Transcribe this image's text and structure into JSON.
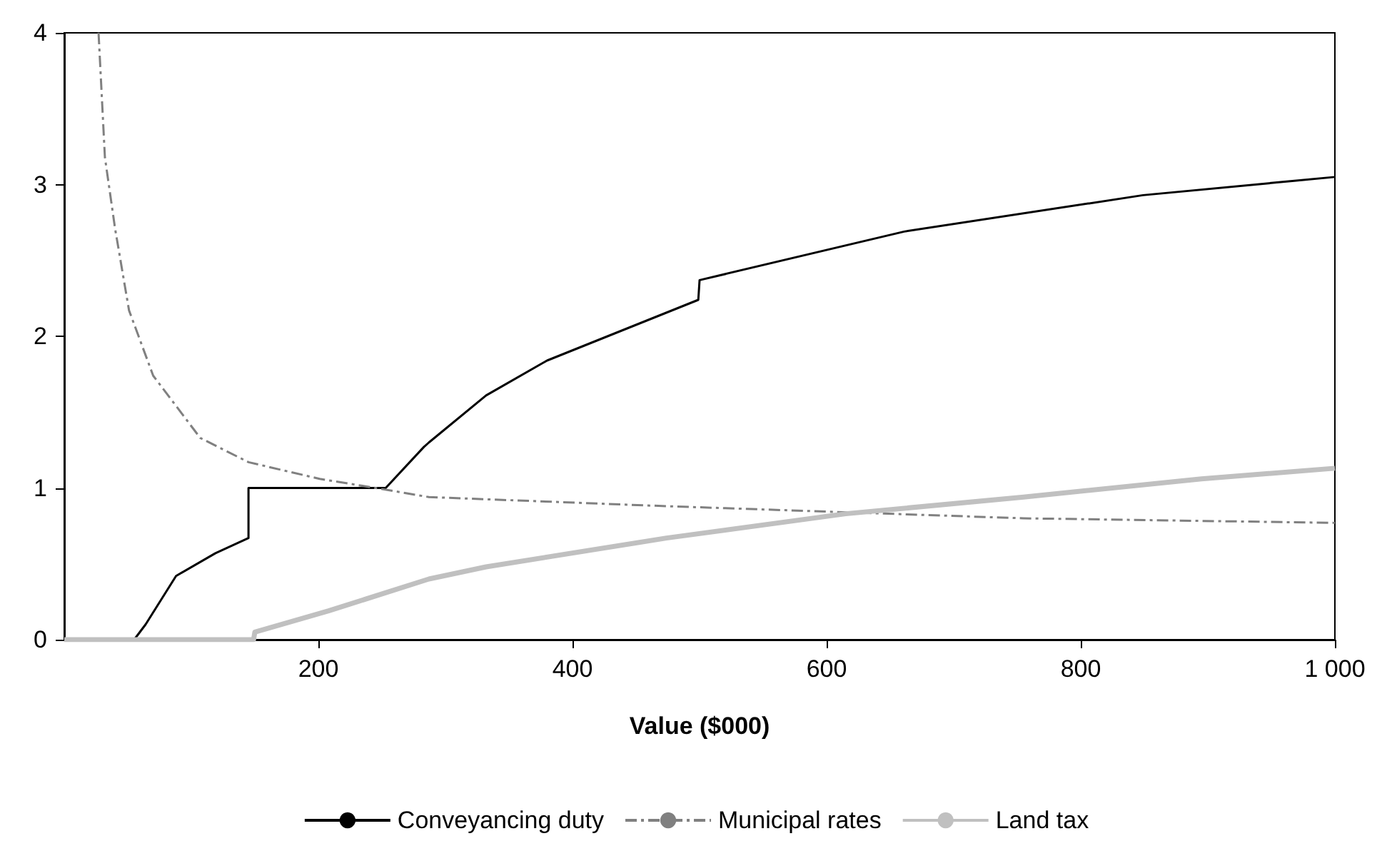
{
  "chart_data": {
    "type": "line",
    "xlabel": "Value ($000)",
    "xlim": [
      0,
      1000
    ],
    "xticks": [
      200,
      400,
      600,
      800,
      {
        "value": 1000,
        "label": "1 000"
      }
    ],
    "ylim": [
      0,
      4
    ],
    "yticks": [
      0,
      1,
      2,
      3,
      4
    ],
    "grid": false,
    "legend": "bottom",
    "marker": "none",
    "series": [
      {
        "name": "Conveyancing duty",
        "color": "#000000",
        "line_style": "solid",
        "x": [
          0,
          55,
          64,
          88,
          119,
          145,
          145,
          253,
          283,
          287,
          332,
          380,
          499,
          500,
          661,
          849,
          1000
        ],
        "values": [
          0,
          0,
          0.1,
          0.42,
          0.57,
          0.67,
          1.0,
          1.0,
          1.27,
          1.3,
          1.61,
          1.84,
          2.24,
          2.37,
          2.69,
          2.93,
          3.05
        ]
      },
      {
        "name": "Municipal rates",
        "color": "#808080",
        "line_style": "dashed",
        "x": [
          27,
          32,
          40,
          51,
          70,
          107,
          145,
          201,
          245,
          287,
          474,
          755,
          1000
        ],
        "values": [
          4.0,
          3.18,
          2.71,
          2.17,
          1.74,
          1.33,
          1.17,
          1.06,
          1.0,
          0.94,
          0.88,
          0.8,
          0.77
        ]
      },
      {
        "name": "Land tax",
        "color": "#c0c0c0",
        "line_style": "solid",
        "x": [
          0,
          149,
          150,
          208,
          287,
          332,
          474,
          615,
          755,
          895,
          1000
        ],
        "values": [
          0,
          0,
          0.05,
          0.19,
          0.4,
          0.48,
          0.67,
          0.83,
          0.94,
          1.06,
          1.13
        ]
      }
    ]
  }
}
